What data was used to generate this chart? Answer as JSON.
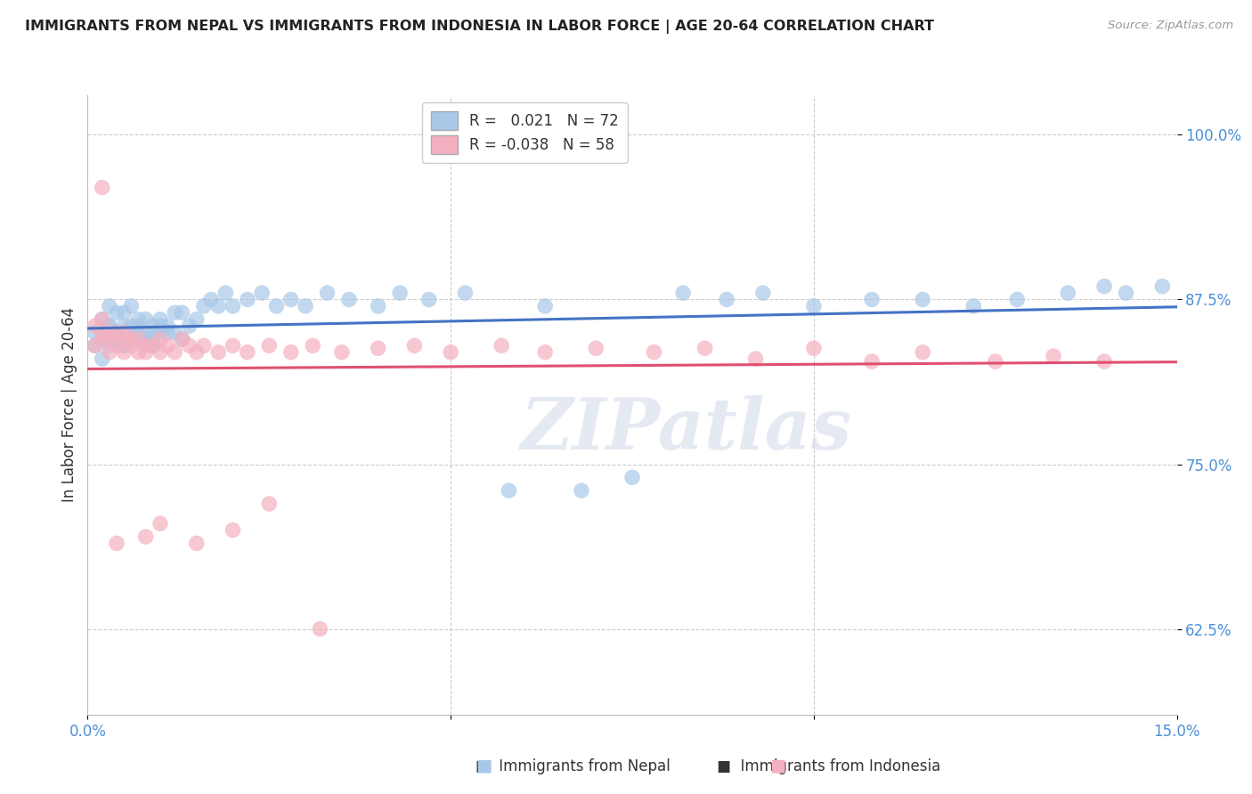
{
  "title": "IMMIGRANTS FROM NEPAL VS IMMIGRANTS FROM INDONESIA IN LABOR FORCE | AGE 20-64 CORRELATION CHART",
  "source": "Source: ZipAtlas.com",
  "ylabel": "In Labor Force | Age 20-64",
  "xlim": [
    0.0,
    0.15
  ],
  "ylim": [
    0.56,
    1.03
  ],
  "yticks": [
    0.625,
    0.75,
    0.875,
    1.0
  ],
  "ytick_labels": [
    "62.5%",
    "75.0%",
    "87.5%",
    "100.0%"
  ],
  "xticks": [
    0.0,
    0.05,
    0.1,
    0.15
  ],
  "xtick_labels": [
    "0.0%",
    "",
    "",
    "15.0%"
  ],
  "nepal_R": 0.021,
  "nepal_N": 72,
  "indonesia_R": -0.038,
  "indonesia_N": 58,
  "nepal_color": "#a8c8e8",
  "indonesia_color": "#f4b0c0",
  "trend_nepal_color": "#4472c4",
  "trend_indonesia_color": "#e05070",
  "nepal_x": [
    0.001,
    0.001,
    0.002,
    0.002,
    0.002,
    0.003,
    0.003,
    0.003,
    0.003,
    0.004,
    0.004,
    0.004,
    0.005,
    0.005,
    0.005,
    0.005,
    0.006,
    0.006,
    0.006,
    0.007,
    0.007,
    0.007,
    0.007,
    0.008,
    0.008,
    0.008,
    0.009,
    0.009,
    0.009,
    0.01,
    0.01,
    0.01,
    0.011,
    0.011,
    0.012,
    0.012,
    0.013,
    0.013,
    0.014,
    0.015,
    0.016,
    0.017,
    0.018,
    0.019,
    0.02,
    0.022,
    0.024,
    0.026,
    0.028,
    0.03,
    0.033,
    0.036,
    0.04,
    0.043,
    0.047,
    0.052,
    0.058,
    0.063,
    0.068,
    0.075,
    0.082,
    0.088,
    0.093,
    0.1,
    0.108,
    0.115,
    0.122,
    0.128,
    0.135,
    0.14,
    0.143,
    0.148
  ],
  "nepal_y": [
    0.84,
    0.85,
    0.83,
    0.845,
    0.86,
    0.855,
    0.84,
    0.855,
    0.87,
    0.85,
    0.865,
    0.845,
    0.84,
    0.855,
    0.865,
    0.84,
    0.855,
    0.845,
    0.87,
    0.86,
    0.845,
    0.85,
    0.855,
    0.845,
    0.86,
    0.85,
    0.855,
    0.845,
    0.84,
    0.85,
    0.855,
    0.86,
    0.85,
    0.855,
    0.865,
    0.85,
    0.845,
    0.865,
    0.855,
    0.86,
    0.87,
    0.875,
    0.87,
    0.88,
    0.87,
    0.875,
    0.88,
    0.87,
    0.875,
    0.87,
    0.88,
    0.875,
    0.87,
    0.88,
    0.875,
    0.88,
    0.73,
    0.87,
    0.73,
    0.74,
    0.88,
    0.875,
    0.88,
    0.87,
    0.875,
    0.875,
    0.87,
    0.875,
    0.88,
    0.885,
    0.88,
    0.885
  ],
  "indonesia_x": [
    0.001,
    0.001,
    0.002,
    0.002,
    0.002,
    0.003,
    0.003,
    0.003,
    0.004,
    0.004,
    0.005,
    0.005,
    0.005,
    0.006,
    0.006,
    0.007,
    0.007,
    0.008,
    0.008,
    0.009,
    0.01,
    0.01,
    0.011,
    0.012,
    0.013,
    0.014,
    0.015,
    0.016,
    0.018,
    0.02,
    0.022,
    0.025,
    0.028,
    0.031,
    0.035,
    0.04,
    0.045,
    0.05,
    0.057,
    0.063,
    0.07,
    0.078,
    0.085,
    0.092,
    0.1,
    0.108,
    0.115,
    0.125,
    0.133,
    0.14,
    0.002,
    0.004,
    0.008,
    0.01,
    0.015,
    0.02,
    0.025,
    0.032
  ],
  "indonesia_y": [
    0.855,
    0.84,
    0.85,
    0.86,
    0.845,
    0.85,
    0.835,
    0.845,
    0.85,
    0.84,
    0.845,
    0.835,
    0.85,
    0.84,
    0.845,
    0.835,
    0.845,
    0.84,
    0.835,
    0.84,
    0.845,
    0.835,
    0.84,
    0.835,
    0.845,
    0.84,
    0.835,
    0.84,
    0.835,
    0.84,
    0.835,
    0.84,
    0.835,
    0.84,
    0.835,
    0.838,
    0.84,
    0.835,
    0.84,
    0.835,
    0.838,
    0.835,
    0.838,
    0.83,
    0.838,
    0.828,
    0.835,
    0.828,
    0.832,
    0.828,
    0.96,
    0.69,
    0.695,
    0.705,
    0.69,
    0.7,
    0.72,
    0.625
  ],
  "watermark": "ZIPatlas",
  "legend_nepal_label": "Immigrants from Nepal",
  "legend_indonesia_label": "Immigrants from Indonesia",
  "background_color": "#ffffff",
  "grid_color": "#cccccc",
  "title_color": "#222222",
  "axis_color": "#4a90d9"
}
